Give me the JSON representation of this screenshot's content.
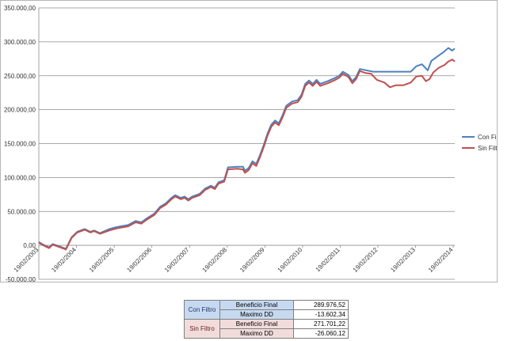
{
  "chart_data": {
    "type": "line",
    "title": "",
    "xlabel": "",
    "ylabel": "",
    "ylim": [
      -50000,
      350000
    ],
    "y_ticks": [
      "-50.000,00",
      "0,00",
      "50.000,00",
      "100.000,00",
      "150.000,00",
      "200.000,00",
      "250.000,00",
      "300.000,00",
      "350.000,00"
    ],
    "y_tick_values": [
      -50000,
      0,
      50000,
      100000,
      150000,
      200000,
      250000,
      300000,
      350000
    ],
    "x_ticks": [
      "19/02/2003",
      "19/02/2004",
      "19/02/2005",
      "19/02/2006",
      "19/02/2007",
      "19/02/2008",
      "19/02/2009",
      "19/02/2010",
      "19/02/2011",
      "19/02/2012",
      "19/02/2013",
      "19/02/2014"
    ],
    "x_range_years": [
      2003.13,
      2014.17
    ],
    "grid": "horizontal",
    "legend_position": "right",
    "series": [
      {
        "name": "Con Filtro",
        "color": "#4f81bd",
        "points": [
          [
            2003.13,
            5000
          ],
          [
            2003.25,
            1000
          ],
          [
            2003.4,
            -3000
          ],
          [
            2003.5,
            2000
          ],
          [
            2003.7,
            -2000
          ],
          [
            2003.85,
            -5000
          ],
          [
            2004.0,
            12000
          ],
          [
            2004.15,
            20000
          ],
          [
            2004.35,
            24000
          ],
          [
            2004.5,
            20000
          ],
          [
            2004.6,
            22000
          ],
          [
            2004.75,
            18000
          ],
          [
            2005.0,
            24000
          ],
          [
            2005.2,
            27000
          ],
          [
            2005.5,
            30000
          ],
          [
            2005.7,
            36000
          ],
          [
            2005.85,
            34000
          ],
          [
            2006.0,
            40000
          ],
          [
            2006.2,
            47000
          ],
          [
            2006.35,
            57000
          ],
          [
            2006.5,
            62000
          ],
          [
            2006.65,
            70000
          ],
          [
            2006.75,
            74000
          ],
          [
            2006.9,
            70000
          ],
          [
            2007.0,
            72000
          ],
          [
            2007.1,
            68000
          ],
          [
            2007.2,
            72000
          ],
          [
            2007.4,
            76000
          ],
          [
            2007.55,
            84000
          ],
          [
            2007.7,
            88000
          ],
          [
            2007.8,
            85000
          ],
          [
            2007.9,
            93000
          ],
          [
            2008.05,
            96000
          ],
          [
            2008.15,
            115000
          ],
          [
            2008.4,
            116000
          ],
          [
            2008.55,
            116000
          ],
          [
            2008.6,
            110000
          ],
          [
            2008.7,
            114000
          ],
          [
            2008.8,
            124000
          ],
          [
            2008.9,
            120000
          ],
          [
            2009.0,
            133000
          ],
          [
            2009.1,
            148000
          ],
          [
            2009.2,
            165000
          ],
          [
            2009.3,
            178000
          ],
          [
            2009.4,
            184000
          ],
          [
            2009.5,
            180000
          ],
          [
            2009.6,
            192000
          ],
          [
            2009.7,
            206000
          ],
          [
            2009.85,
            212000
          ],
          [
            2010.0,
            214000
          ],
          [
            2010.1,
            222000
          ],
          [
            2010.2,
            238000
          ],
          [
            2010.3,
            243000
          ],
          [
            2010.4,
            238000
          ],
          [
            2010.5,
            244000
          ],
          [
            2010.6,
            238000
          ],
          [
            2010.8,
            242000
          ],
          [
            2011.0,
            247000
          ],
          [
            2011.1,
            250000
          ],
          [
            2011.2,
            256000
          ],
          [
            2011.35,
            251000
          ],
          [
            2011.45,
            242000
          ],
          [
            2011.55,
            248000
          ],
          [
            2011.65,
            260000
          ],
          [
            2012.0,
            256000
          ],
          [
            2012.3,
            256000
          ],
          [
            2012.6,
            256000
          ],
          [
            2012.8,
            256000
          ],
          [
            2013.0,
            256000
          ],
          [
            2013.15,
            264000
          ],
          [
            2013.3,
            267000
          ],
          [
            2013.45,
            258000
          ],
          [
            2013.55,
            272000
          ],
          [
            2013.7,
            278000
          ],
          [
            2013.85,
            284000
          ],
          [
            2014.0,
            291000
          ],
          [
            2014.1,
            287000
          ],
          [
            2014.17,
            290000
          ]
        ]
      },
      {
        "name": "Sin Filtro",
        "color": "#c0504d",
        "points": [
          [
            2003.13,
            4000
          ],
          [
            2003.25,
            0
          ],
          [
            2003.4,
            -4000
          ],
          [
            2003.5,
            1000
          ],
          [
            2003.7,
            -3000
          ],
          [
            2003.85,
            -6000
          ],
          [
            2004.0,
            11000
          ],
          [
            2004.15,
            19000
          ],
          [
            2004.35,
            23000
          ],
          [
            2004.5,
            19000
          ],
          [
            2004.6,
            21000
          ],
          [
            2004.75,
            17000
          ],
          [
            2005.0,
            22000
          ],
          [
            2005.2,
            25000
          ],
          [
            2005.5,
            28000
          ],
          [
            2005.7,
            34000
          ],
          [
            2005.85,
            32000
          ],
          [
            2006.0,
            38000
          ],
          [
            2006.2,
            45000
          ],
          [
            2006.35,
            55000
          ],
          [
            2006.5,
            60000
          ],
          [
            2006.65,
            68000
          ],
          [
            2006.75,
            72000
          ],
          [
            2006.9,
            68000
          ],
          [
            2007.0,
            70000
          ],
          [
            2007.1,
            66000
          ],
          [
            2007.2,
            70000
          ],
          [
            2007.4,
            74000
          ],
          [
            2007.55,
            82000
          ],
          [
            2007.7,
            86000
          ],
          [
            2007.8,
            83000
          ],
          [
            2007.9,
            91000
          ],
          [
            2008.05,
            94000
          ],
          [
            2008.15,
            112000
          ],
          [
            2008.4,
            113000
          ],
          [
            2008.55,
            112000
          ],
          [
            2008.6,
            107000
          ],
          [
            2008.7,
            111000
          ],
          [
            2008.8,
            121000
          ],
          [
            2008.9,
            117000
          ],
          [
            2009.0,
            130000
          ],
          [
            2009.1,
            145000
          ],
          [
            2009.2,
            162000
          ],
          [
            2009.3,
            175000
          ],
          [
            2009.4,
            181000
          ],
          [
            2009.5,
            177000
          ],
          [
            2009.6,
            189000
          ],
          [
            2009.7,
            203000
          ],
          [
            2009.85,
            209000
          ],
          [
            2010.0,
            211000
          ],
          [
            2010.1,
            219000
          ],
          [
            2010.2,
            235000
          ],
          [
            2010.3,
            240000
          ],
          [
            2010.4,
            235000
          ],
          [
            2010.5,
            241000
          ],
          [
            2010.6,
            235000
          ],
          [
            2010.8,
            239000
          ],
          [
            2011.0,
            244000
          ],
          [
            2011.1,
            247000
          ],
          [
            2011.2,
            253000
          ],
          [
            2011.35,
            248000
          ],
          [
            2011.45,
            239000
          ],
          [
            2011.55,
            245000
          ],
          [
            2011.65,
            257000
          ],
          [
            2011.8,
            254000
          ],
          [
            2011.95,
            253000
          ],
          [
            2012.1,
            244000
          ],
          [
            2012.3,
            240000
          ],
          [
            2012.45,
            233000
          ],
          [
            2012.6,
            236000
          ],
          [
            2012.8,
            236000
          ],
          [
            2013.0,
            240000
          ],
          [
            2013.15,
            249000
          ],
          [
            2013.3,
            250000
          ],
          [
            2013.4,
            242000
          ],
          [
            2013.5,
            245000
          ],
          [
            2013.6,
            255000
          ],
          [
            2013.75,
            262000
          ],
          [
            2013.9,
            266000
          ],
          [
            2014.0,
            271000
          ],
          [
            2014.1,
            274000
          ],
          [
            2014.17,
            271000
          ]
        ]
      }
    ]
  },
  "summary_table": {
    "con_filtro": {
      "group": "Con Filtro",
      "rows": [
        {
          "label": "Beneficio Final",
          "value": "289.976,52"
        },
        {
          "label": "Maximo DD",
          "value": "-13.602,34"
        }
      ]
    },
    "sin_filtro": {
      "group": "Sin Filtro",
      "rows": [
        {
          "label": "Beneficio Final",
          "value": "271.701,22"
        },
        {
          "label": "Maximo DD",
          "value": "-26.060,12"
        }
      ]
    }
  }
}
